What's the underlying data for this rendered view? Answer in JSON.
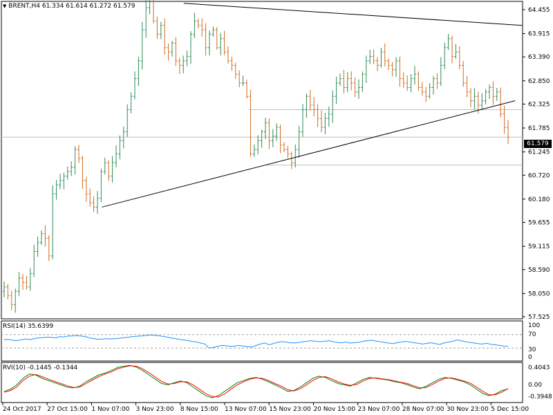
{
  "header": {
    "menu_icon": "dropdown-triangle-icon",
    "symbol": "BRENT,H4",
    "open": "61.334",
    "high": "61.614",
    "low": "61.272",
    "close": "61.579"
  },
  "current_price_label": "61.579",
  "panels": {
    "rsi": {
      "title": "RSI(14)",
      "value": "35.6399",
      "levels": [
        "100",
        "70",
        "30",
        "0"
      ]
    },
    "rvi": {
      "title": "RVI(10)",
      "value1": "-0.1445",
      "value2": "-0.1344",
      "levels": [
        "0.4043",
        "0.00",
        "-0.3948"
      ]
    }
  },
  "colors": {
    "bull": "#2e8b57",
    "bear": "#d2691e",
    "rsi_line": "#1e90ff",
    "rvi_line1": "#008000",
    "rvi_line2": "#ff0000",
    "trendline": "#000000",
    "hline": "#c0c0c0"
  },
  "chart_data": [
    {
      "type": "candlestick",
      "title": "BRENT,H4",
      "y_tick_labels": [
        "64.455",
        "63.915",
        "63.390",
        "62.850",
        "62.325",
        "61.785",
        "61.245",
        "60.720",
        "60.180",
        "59.655",
        "59.115",
        "58.590",
        "58.050",
        "57.525"
      ],
      "ylim": [
        57.525,
        64.455
      ],
      "x_tick_labels": [
        "24 Oct 2017",
        "27 Oct 15:00",
        "1 Nov 07:00",
        "3 Nov 23:00",
        "8 Nov 15:00",
        "13 Nov 07:00",
        "15 Nov 23:00",
        "20 Nov 15:00",
        "23 Nov 07:00",
        "28 Nov 07:00",
        "30 Nov 23:00",
        "5 Dec 15:00"
      ],
      "ohlc_close": [
        58.2,
        58.0,
        57.8,
        58.1,
        58.4,
        58.3,
        58.2,
        58.5,
        59.0,
        59.2,
        59.4,
        59.3,
        58.9,
        60.3,
        60.5,
        60.6,
        60.7,
        60.8,
        60.9,
        61.3,
        61.1,
        60.6,
        60.3,
        60.1,
        60.0,
        60.2,
        60.8,
        61.0,
        60.7,
        61.0,
        61.2,
        61.5,
        61.7,
        62.2,
        62.5,
        62.9,
        63.3,
        64.0,
        64.5,
        64.7,
        64.2,
        63.9,
        64.1,
        63.6,
        63.5,
        63.7,
        63.3,
        63.2,
        63.3,
        63.4,
        63.9,
        64.2,
        64.1,
        64.0,
        63.6,
        63.9,
        64.0,
        63.6,
        63.8,
        63.5,
        63.3,
        63.2,
        63.0,
        62.8,
        62.8,
        62.5,
        61.2,
        61.3,
        61.5,
        61.7,
        61.9,
        61.5,
        61.6,
        61.8,
        61.4,
        61.3,
        61.2,
        61.0,
        61.3,
        61.7,
        62.2,
        62.5,
        62.3,
        62.2,
        62.0,
        61.8,
        62.0,
        62.1,
        62.5,
        62.8,
        62.9,
        62.7,
        62.9,
        62.8,
        62.6,
        62.7,
        63.0,
        63.3,
        63.4,
        63.3,
        63.2,
        63.5,
        63.3,
        63.2,
        63.1,
        63.3,
        62.9,
        62.8,
        62.7,
        62.9,
        63.0,
        62.7,
        62.6,
        62.5,
        62.7,
        62.9,
        62.8,
        63.2,
        63.6,
        63.8,
        63.4,
        63.5,
        63.2,
        62.8,
        62.6,
        62.4,
        62.5,
        62.3,
        62.4,
        62.6,
        62.7,
        62.5,
        62.6,
        62.1,
        61.8,
        61.579
      ],
      "trendlines": [
        {
          "from": [
            60.0,
            "1 Nov 07:00"
          ],
          "to": [
            62.4,
            "5 Dec 15:00"
          ]
        },
        {
          "from": [
            64.6,
            "8 Nov 15:00"
          ],
          "to": [
            64.1,
            "5 Dec 15:00"
          ]
        }
      ],
      "horizontal_levels": [
        62.2,
        61.579,
        60.95
      ]
    },
    {
      "type": "line",
      "title": "RSI(14) 35.6399",
      "ylim": [
        0,
        100
      ],
      "levels": [
        70,
        30
      ],
      "values": [
        55,
        56,
        53,
        52,
        55,
        57,
        55,
        58,
        60,
        61,
        62,
        62,
        60,
        64,
        63,
        66,
        66,
        67,
        66,
        64,
        60,
        58,
        56,
        57,
        58,
        57,
        58,
        59,
        61,
        62,
        64,
        65,
        66,
        67,
        69,
        68,
        67,
        65,
        63,
        60,
        58,
        56,
        54,
        52,
        50,
        48,
        45,
        42,
        30,
        32,
        35,
        38,
        37,
        35,
        36,
        38,
        36,
        34,
        33,
        38,
        42,
        45,
        40,
        43,
        47,
        49,
        48,
        46,
        45,
        47,
        49,
        50,
        52,
        50,
        49,
        50,
        52,
        49,
        47,
        46,
        48,
        45,
        46,
        47,
        50,
        52,
        53,
        51,
        49,
        47,
        45,
        43,
        46,
        48,
        50,
        48,
        46,
        44,
        42,
        44,
        46,
        43,
        41,
        45,
        48,
        50,
        54,
        52,
        49,
        47,
        45,
        43,
        42,
        44,
        41,
        40,
        38,
        36,
        35.6399
      ]
    },
    {
      "type": "line",
      "title": "RVI(10) -0.1445 -0.1344",
      "ylim": [
        -0.3948,
        0.4043
      ],
      "series": [
        {
          "name": "RVI",
          "values": [
            -0.2,
            -0.15,
            -0.05,
            0.1,
            0.2,
            0.18,
            0.1,
            0.05,
            0.0,
            -0.05,
            -0.1,
            -0.12,
            -0.08,
            0.02,
            0.1,
            0.18,
            0.22,
            0.28,
            0.35,
            0.38,
            0.4,
            0.36,
            0.28,
            0.18,
            0.08,
            -0.02,
            -0.05,
            0.0,
            0.04,
            0.0,
            -0.1,
            -0.2,
            -0.3,
            -0.35,
            -0.3,
            -0.2,
            -0.1,
            0.0,
            0.05,
            0.1,
            0.12,
            0.08,
            0.02,
            -0.05,
            -0.12,
            -0.2,
            -0.18,
            -0.1,
            0.0,
            0.1,
            0.15,
            0.12,
            0.05,
            -0.02,
            -0.05,
            -0.08,
            0.0,
            0.08,
            0.12,
            0.1,
            0.08,
            0.06,
            0.02,
            0.0,
            -0.05,
            -0.1,
            -0.14,
            -0.08,
            0.0,
            0.08,
            0.12,
            0.1,
            0.06,
            0.02,
            -0.05,
            -0.15,
            -0.25,
            -0.3,
            -0.26,
            -0.18,
            -0.1445
          ]
        },
        {
          "name": "Signal",
          "values": [
            -0.22,
            -0.18,
            -0.1,
            0.05,
            0.15,
            0.19,
            0.14,
            0.08,
            0.03,
            -0.02,
            -0.07,
            -0.11,
            -0.1,
            -0.02,
            0.06,
            0.14,
            0.2,
            0.25,
            0.32,
            0.36,
            0.39,
            0.38,
            0.32,
            0.23,
            0.13,
            0.03,
            -0.03,
            -0.02,
            0.02,
            0.02,
            -0.05,
            -0.15,
            -0.25,
            -0.32,
            -0.33,
            -0.26,
            -0.15,
            -0.05,
            0.02,
            0.08,
            0.11,
            0.1,
            0.05,
            -0.02,
            -0.08,
            -0.16,
            -0.19,
            -0.14,
            -0.05,
            0.05,
            0.12,
            0.14,
            0.09,
            0.02,
            -0.03,
            -0.06,
            -0.04,
            0.04,
            0.1,
            0.11,
            0.09,
            0.07,
            0.04,
            0.01,
            -0.02,
            -0.07,
            -0.12,
            -0.11,
            -0.04,
            0.04,
            0.1,
            0.11,
            0.08,
            0.04,
            -0.01,
            -0.1,
            -0.2,
            -0.28,
            -0.28,
            -0.22,
            -0.1344
          ]
        }
      ]
    }
  ]
}
